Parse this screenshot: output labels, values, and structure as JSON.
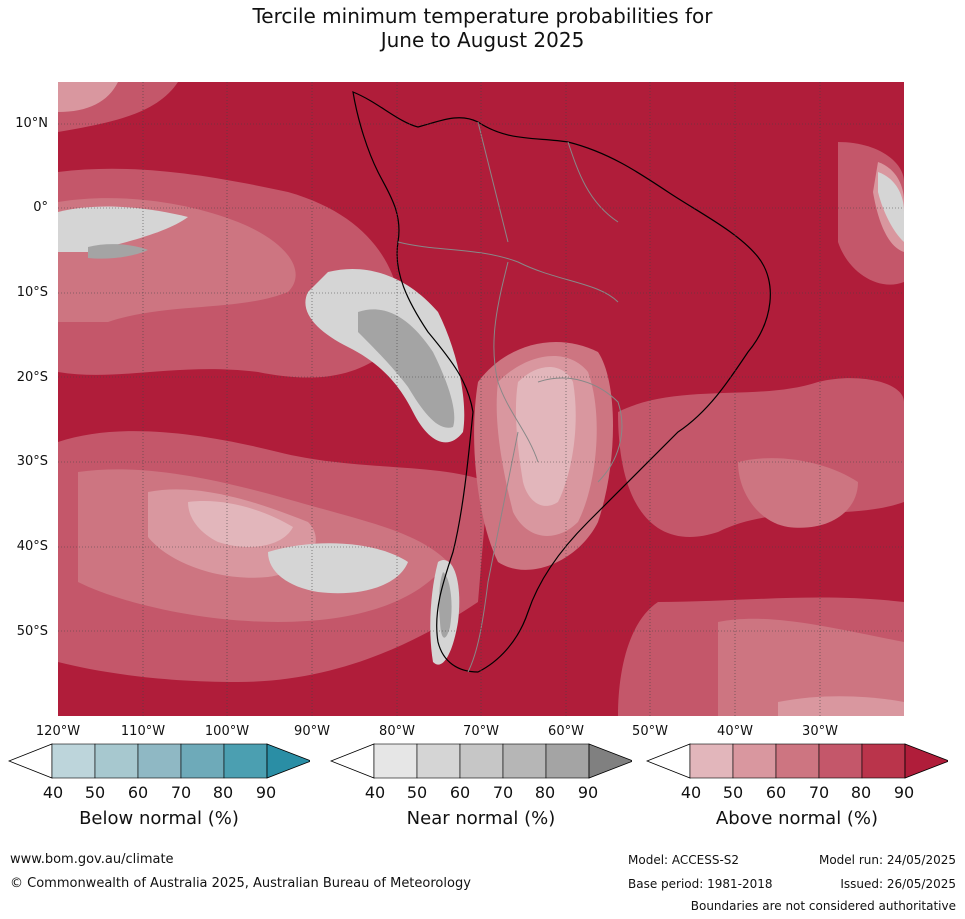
{
  "title_line1": "Tercile minimum temperature probabilities for",
  "title_line2": "June to August 2025",
  "lat_labels": [
    "10°N",
    "0°",
    "10°S",
    "20°S",
    "30°S",
    "40°S",
    "50°S"
  ],
  "lon_labels": [
    "120°W",
    "110°W",
    "100°W",
    "90°W",
    "80°W",
    "70°W",
    "60°W",
    "50°W",
    "40°W",
    "30°W"
  ],
  "colorbars": [
    {
      "title": "Below normal (%)",
      "ticks": [
        "40",
        "50",
        "60",
        "70",
        "80",
        "90"
      ],
      "colors": [
        "#ffffff",
        "#bdd5db",
        "#a7c8cf",
        "#8fb8c4",
        "#6eaab9",
        "#4b9fb1",
        "#2a8ea5"
      ]
    },
    {
      "title": "Near normal (%)",
      "ticks": [
        "40",
        "50",
        "60",
        "70",
        "80",
        "90"
      ],
      "colors": [
        "#ffffff",
        "#e6e6e6",
        "#d5d5d5",
        "#c6c6c6",
        "#b6b6b6",
        "#a4a4a4",
        "#808080"
      ]
    },
    {
      "title": "Above normal (%)",
      "ticks": [
        "40",
        "50",
        "60",
        "70",
        "80",
        "90"
      ],
      "colors": [
        "#ffffff",
        "#e2b6bb",
        "#d9979f",
        "#cd7581",
        "#c4576a",
        "#ba344b",
        "#b01d3a"
      ]
    }
  ],
  "footer": {
    "website": "www.bom.gov.au/climate",
    "copyright": "© Commonwealth of Australia 2025, Australian Bureau of Meteorology",
    "model": "Model: ACCESS-S2",
    "model_run": "Model run: 24/05/2025",
    "base_period": "Base period: 1981-2018",
    "issued": "Issued: 26/05/2025",
    "disclaimer": "Boundaries are not considered authoritative"
  }
}
